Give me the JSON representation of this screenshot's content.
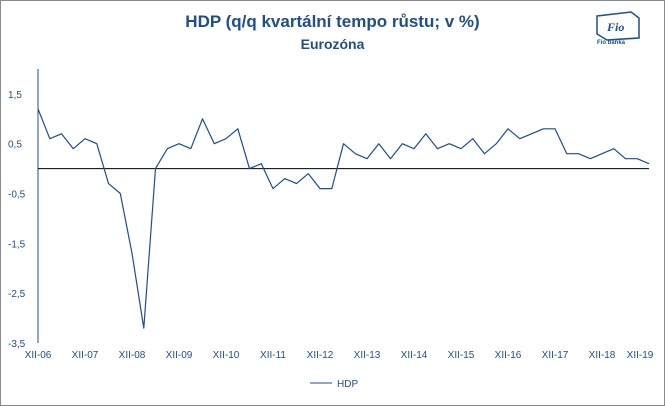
{
  "header": {
    "title": "HDP (q/q kvartální tempo růstu; v %)",
    "subtitle": "Eurozóna",
    "logo_text": "Fio banka",
    "logo_glyph": "Fio"
  },
  "chart_data": {
    "type": "line",
    "title": "HDP (q/q kvartální tempo růstu; v %)",
    "subtitle": "Eurozóna",
    "xlabel": "",
    "ylabel": "",
    "ylim": [
      -3.5,
      2.0
    ],
    "y_ticks": [
      "1,5",
      "0,5",
      "-0,5",
      "-1,5",
      "-2,5",
      "-3,5"
    ],
    "y_tick_values": [
      1.5,
      0.5,
      -0.5,
      -1.5,
      -2.5,
      -3.5
    ],
    "x_ticks": [
      "XII-06",
      "XII-07",
      "XII-08",
      "XII-09",
      "XII-10",
      "XII-11",
      "XII-12",
      "XII-13",
      "XII-14",
      "XII-15",
      "XII-16",
      "XII-17",
      "XII-18",
      "XII-19"
    ],
    "x_tick_indices": [
      0,
      4,
      8,
      12,
      16,
      20,
      24,
      28,
      32,
      36,
      40,
      44,
      48,
      52
    ],
    "grid": false,
    "legend_position": "bottom-center",
    "colors": {
      "line": "#1f4e8c",
      "text": "#1f4e8c",
      "axis": "#1f4e8c",
      "border": "#8a8a8a"
    },
    "series": [
      {
        "name": "HDP",
        "values": [
          1.2,
          0.6,
          0.7,
          0.4,
          0.6,
          0.5,
          -0.3,
          -0.5,
          -1.7,
          -3.2,
          0.0,
          0.4,
          0.5,
          0.4,
          1.0,
          0.5,
          0.6,
          0.8,
          0.0,
          0.1,
          -0.4,
          -0.2,
          -0.3,
          -0.1,
          -0.4,
          -0.4,
          0.5,
          0.3,
          0.2,
          0.5,
          0.2,
          0.5,
          0.4,
          0.7,
          0.4,
          0.5,
          0.4,
          0.6,
          0.3,
          0.5,
          0.8,
          0.6,
          0.7,
          0.8,
          0.8,
          0.3,
          0.3,
          0.2,
          0.3,
          0.4,
          0.2,
          0.2,
          0.1
        ]
      }
    ]
  }
}
